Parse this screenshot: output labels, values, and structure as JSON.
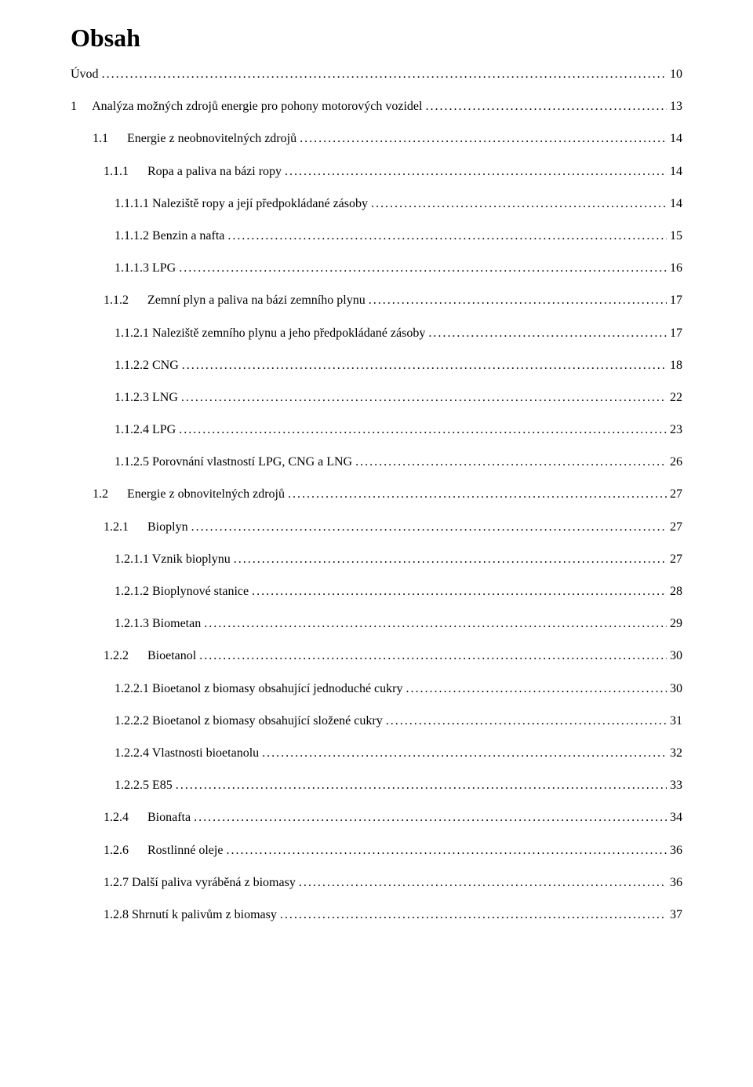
{
  "title": "Obsah",
  "entries": [
    {
      "indent": 0,
      "label": "Úvod",
      "page": "10"
    },
    {
      "indent": 0,
      "label": "1     Analýza možných zdrojů energie pro pohony motorových vozidel",
      "page": "13"
    },
    {
      "indent": 1,
      "label": "1.1      Energie z neobnovitelných zdrojů",
      "page": "14"
    },
    {
      "indent": 2,
      "label": "1.1.1      Ropa a paliva na bázi ropy",
      "page": "14"
    },
    {
      "indent": 3,
      "label": "1.1.1.1 Naleziště ropy a její předpokládané zásoby",
      "page": "14"
    },
    {
      "indent": 3,
      "label": "1.1.1.2 Benzin a nafta",
      "page": "15"
    },
    {
      "indent": 3,
      "label": "1.1.1.3 LPG",
      "page": "16"
    },
    {
      "indent": 2,
      "label": "1.1.2      Zemní plyn a paliva na bázi zemního plynu",
      "page": "17"
    },
    {
      "indent": 3,
      "label": "1.1.2.1 Naleziště zemního plynu a jeho předpokládané zásoby",
      "page": "17"
    },
    {
      "indent": 3,
      "label": "1.1.2.2 CNG",
      "page": "18"
    },
    {
      "indent": 3,
      "label": "1.1.2.3 LNG",
      "page": "22"
    },
    {
      "indent": 3,
      "label": "1.1.2.4 LPG",
      "page": "23"
    },
    {
      "indent": 3,
      "label": "1.1.2.5 Porovnání vlastností LPG, CNG a LNG",
      "page": "26"
    },
    {
      "indent": 1,
      "label": "1.2      Energie z obnovitelných zdrojů",
      "page": "27"
    },
    {
      "indent": 2,
      "label": "1.2.1      Bioplyn",
      "page": "27"
    },
    {
      "indent": 3,
      "label": "1.2.1.1 Vznik bioplynu",
      "page": "27"
    },
    {
      "indent": 3,
      "label": "1.2.1.2 Bioplynové stanice",
      "page": "28"
    },
    {
      "indent": 3,
      "label": "1.2.1.3 Biometan",
      "page": "29"
    },
    {
      "indent": 2,
      "label": "1.2.2      Bioetanol",
      "page": "30"
    },
    {
      "indent": 3,
      "label": "1.2.2.1 Bioetanol z biomasy obsahující jednoduché cukry",
      "page": "30"
    },
    {
      "indent": 3,
      "label": "1.2.2.2 Bioetanol z biomasy obsahující složené cukry",
      "page": "31"
    },
    {
      "indent": 3,
      "label": "1.2.2.4 Vlastnosti bioetanolu",
      "page": "32"
    },
    {
      "indent": 3,
      "label": "1.2.2.5 E85",
      "page": "33"
    },
    {
      "indent": 2,
      "label": "1.2.4      Bionafta",
      "page": "34"
    },
    {
      "indent": 2,
      "label": "1.2.6      Rostlinné oleje",
      "page": "36"
    },
    {
      "indent": 2,
      "label": "1.2.7 Další paliva vyráběná z biomasy",
      "page": "36"
    },
    {
      "indent": 2,
      "label": "1.2.8 Shrnutí k palivům z biomasy",
      "page": "37"
    }
  ]
}
